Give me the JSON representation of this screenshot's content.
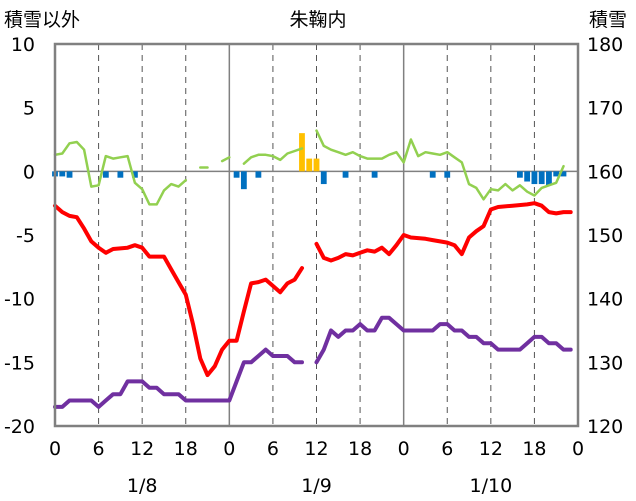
{
  "chart_data": {
    "type": "line",
    "title": "朱鞠内",
    "left_axis": {
      "label": "積雪以外",
      "range": [
        -20,
        10
      ],
      "ticks": [
        "10",
        "5",
        "0",
        "-5",
        "-10",
        "-15",
        "-20"
      ]
    },
    "right_axis": {
      "label": "積雪",
      "range": [
        120,
        180
      ],
      "ticks": [
        "180",
        "170",
        "160",
        "150",
        "140",
        "130",
        "120"
      ]
    },
    "x_tick_labels": [
      "0",
      "6",
      "12",
      "18",
      "0",
      "6",
      "12",
      "18",
      "0",
      "6",
      "12",
      "18",
      "0"
    ],
    "date_labels": [
      "1/8",
      "1/9",
      "1/10"
    ],
    "x_range_hours": [
      0,
      72
    ],
    "grid": {
      "vertical_dashed_every_hours": 6,
      "solid_day_separators_hours": [
        24,
        48
      ]
    },
    "colors": {
      "temperature": "#ff0000",
      "snow_depth": "#7030a0",
      "wind": "#92d050",
      "precip_positive": "#ffc000",
      "precip_negative": "#0070c0",
      "zero_line": "#808080",
      "frame": "#808080"
    },
    "series": [
      {
        "key": "temperature",
        "axis": "left",
        "points": [
          [
            0,
            -2.7
          ],
          [
            1,
            -3.2
          ],
          [
            2,
            -3.5
          ],
          [
            3,
            -3.6
          ],
          [
            4,
            -4.5
          ],
          [
            5,
            -5.5
          ],
          [
            6,
            -6
          ],
          [
            7,
            -6.4
          ],
          [
            8,
            -6.1
          ],
          [
            10,
            -6
          ],
          [
            11,
            -5.8
          ],
          [
            12,
            -6
          ],
          [
            13,
            -6.7
          ],
          [
            15,
            -6.7
          ],
          [
            16,
            -7.7
          ],
          [
            17,
            -8.7
          ],
          [
            18,
            -9.7
          ],
          [
            19,
            -12
          ],
          [
            20,
            -14.7
          ],
          [
            21,
            -16
          ],
          [
            22,
            -15.3
          ],
          [
            23,
            -14
          ],
          [
            24,
            -13.3
          ],
          [
            25,
            -13.3
          ],
          [
            26,
            -11
          ],
          [
            27,
            -8.8
          ],
          [
            28,
            -8.7
          ],
          [
            29,
            -8.5
          ],
          [
            30,
            -9
          ],
          [
            31,
            -9.5
          ],
          [
            32,
            -8.8
          ],
          [
            33,
            -8.5
          ],
          [
            34,
            -7.6
          ],
          null,
          [
            36,
            -5.7
          ],
          [
            37,
            -6.8
          ],
          [
            38,
            -7
          ],
          [
            39,
            -6.8
          ],
          [
            40,
            -6.5
          ],
          [
            41,
            -6.6
          ],
          [
            42,
            -6.4
          ],
          [
            43,
            -6.2
          ],
          [
            44,
            -6.3
          ],
          [
            45,
            -6
          ],
          [
            46,
            -6.5
          ],
          [
            47,
            -5.8
          ],
          [
            48,
            -5
          ],
          [
            49,
            -5.2
          ],
          [
            51,
            -5.3
          ],
          [
            52,
            -5.4
          ],
          [
            53,
            -5.5
          ],
          [
            54,
            -5.6
          ],
          [
            55,
            -5.8
          ],
          [
            56,
            -6.5
          ],
          [
            57,
            -5.2
          ],
          [
            58,
            -4.7
          ],
          [
            59,
            -4.3
          ],
          [
            60,
            -3
          ],
          [
            61,
            -2.8
          ],
          [
            63,
            -2.7
          ],
          [
            65,
            -2.6
          ],
          [
            66,
            -2.5
          ],
          [
            67,
            -2.7
          ],
          [
            68,
            -3.2
          ],
          [
            69,
            -3.3
          ],
          [
            70,
            -3.2
          ],
          [
            71,
            -3.2
          ]
        ]
      },
      {
        "key": "snow_depth",
        "axis": "right",
        "points": [
          [
            0,
            123
          ],
          [
            1,
            123
          ],
          [
            2,
            124
          ],
          [
            5,
            124
          ],
          [
            6,
            123
          ],
          [
            7,
            124
          ],
          [
            8,
            125
          ],
          [
            9,
            125
          ],
          [
            10,
            127
          ],
          [
            12,
            127
          ],
          [
            13,
            126
          ],
          [
            14,
            126
          ],
          [
            15,
            125
          ],
          [
            17,
            125
          ],
          [
            18,
            124
          ],
          [
            24,
            124
          ],
          [
            25,
            127
          ],
          [
            26,
            130
          ],
          [
            27,
            130
          ],
          [
            28,
            131
          ],
          [
            29,
            132
          ],
          [
            30,
            131
          ],
          [
            31,
            131
          ],
          [
            32,
            131
          ],
          [
            33,
            130
          ],
          [
            34,
            130
          ],
          null,
          [
            36,
            130
          ],
          [
            37,
            132
          ],
          [
            38,
            135
          ],
          [
            39,
            134
          ],
          [
            40,
            135
          ],
          [
            41,
            135
          ],
          [
            42,
            136
          ],
          [
            43,
            135
          ],
          [
            44,
            135
          ],
          [
            45,
            137
          ],
          [
            46,
            137
          ],
          [
            47,
            136
          ],
          [
            48,
            135
          ],
          [
            49,
            135
          ],
          [
            52,
            135
          ],
          [
            53,
            136
          ],
          [
            54,
            136
          ],
          [
            55,
            135
          ],
          [
            56,
            135
          ],
          [
            57,
            134
          ],
          [
            58,
            134
          ],
          [
            59,
            133
          ],
          [
            60,
            133
          ],
          [
            61,
            132
          ],
          [
            62,
            132
          ],
          [
            63,
            132
          ],
          [
            64,
            132
          ],
          [
            65,
            133
          ],
          [
            66,
            134
          ],
          [
            67,
            134
          ],
          [
            68,
            133
          ],
          [
            69,
            133
          ],
          [
            70,
            132
          ],
          [
            71,
            132
          ]
        ]
      },
      {
        "key": "wind",
        "axis": "left",
        "points": [
          [
            0,
            1.3
          ],
          [
            1,
            1.4
          ],
          [
            2,
            2.2
          ],
          [
            3,
            2.3
          ],
          [
            4,
            1.7
          ],
          [
            5,
            -1.2
          ],
          [
            6,
            -1.1
          ],
          [
            7,
            1.2
          ],
          [
            8,
            1
          ],
          [
            9,
            1.1
          ],
          [
            10,
            1.2
          ],
          [
            11,
            -0.9
          ],
          [
            12,
            -1.4
          ],
          [
            13,
            -2.6
          ],
          [
            14,
            -2.6
          ],
          [
            15,
            -1.5
          ],
          [
            16,
            -1
          ],
          [
            17,
            -1.2
          ],
          [
            18,
            -0.7
          ],
          null,
          [
            20,
            0.3
          ],
          [
            21,
            0.3
          ],
          null,
          [
            23,
            0.8
          ],
          [
            24,
            1.1
          ],
          null,
          [
            26,
            0.6
          ],
          [
            27,
            1.1
          ],
          [
            28,
            1.3
          ],
          [
            29,
            1.3
          ],
          [
            30,
            1.2
          ],
          [
            31,
            0.9
          ],
          [
            32,
            1.4
          ],
          [
            33,
            1.6
          ],
          [
            34,
            1.8
          ],
          null,
          [
            36,
            3.2
          ],
          [
            37,
            2
          ],
          [
            38,
            1.7
          ],
          [
            39,
            1.5
          ],
          [
            40,
            1.3
          ],
          [
            41,
            1.5
          ],
          [
            42,
            1.2
          ],
          [
            43,
            1
          ],
          [
            44,
            1
          ],
          [
            45,
            1
          ],
          [
            46,
            1.3
          ],
          [
            47,
            1.5
          ],
          [
            48,
            0.7
          ],
          [
            49,
            2.5
          ],
          [
            50,
            1.2
          ],
          [
            51,
            1.5
          ],
          [
            52,
            1.4
          ],
          [
            53,
            1.3
          ],
          [
            54,
            1.5
          ],
          [
            55,
            1.1
          ],
          [
            56,
            0.7
          ],
          [
            57,
            -1
          ],
          [
            58,
            -1.3
          ],
          [
            59,
            -2.2
          ],
          [
            60,
            -1.4
          ],
          [
            61,
            -1.5
          ],
          [
            62,
            -1
          ],
          [
            63,
            -1.5
          ],
          [
            64,
            -1.1
          ],
          [
            65,
            -1.6
          ],
          [
            66,
            -1.9
          ],
          [
            67,
            -1.3
          ],
          [
            68,
            -1.1
          ],
          [
            69,
            -0.9
          ],
          [
            70,
            0.4
          ]
        ]
      }
    ],
    "bars": {
      "axis": "left",
      "positive": [
        [
          34,
          3
        ],
        [
          35,
          1
        ],
        [
          36,
          1
        ]
      ],
      "negative": [
        [
          0,
          -0.4
        ],
        [
          1,
          -0.4
        ],
        [
          2,
          -0.5
        ],
        [
          7,
          -0.5
        ],
        [
          9,
          -0.5
        ],
        [
          11,
          -0.5
        ],
        [
          25,
          -0.5
        ],
        [
          26,
          -1.4
        ],
        [
          28,
          -0.5
        ],
        [
          37,
          -1
        ],
        [
          40,
          -0.5
        ],
        [
          44,
          -0.5
        ],
        [
          52,
          -0.5
        ],
        [
          54,
          -0.5
        ],
        [
          64,
          -0.5
        ],
        [
          65,
          -0.8
        ],
        [
          66,
          -1
        ],
        [
          67,
          -1
        ],
        [
          68,
          -1.1
        ],
        [
          69,
          -0.4
        ],
        [
          70,
          -0.4
        ]
      ]
    }
  }
}
